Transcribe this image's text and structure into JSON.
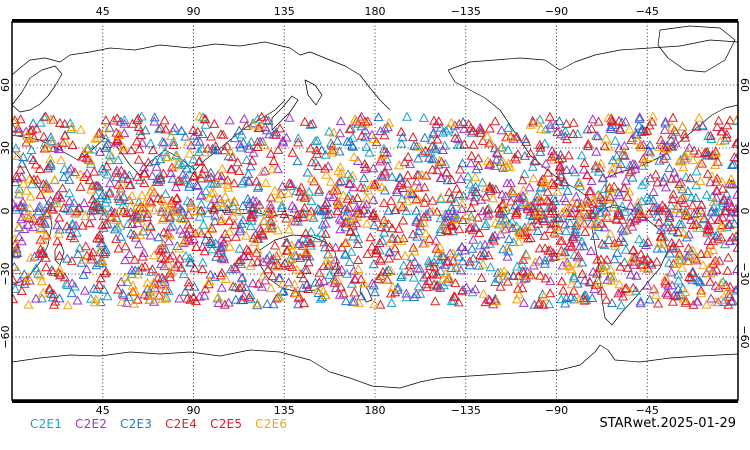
{
  "map": {
    "projection": "equirectangular",
    "lon_range": [
      0,
      360
    ],
    "lat_range": [
      -90,
      90
    ],
    "grid_lons": [
      45,
      90,
      135,
      180,
      225,
      270,
      315
    ],
    "grid_lats": [
      60,
      30,
      0,
      -30,
      -60
    ],
    "top_lon_labels": [
      "45",
      "90",
      "135",
      "180",
      "−135",
      "−90",
      "−45"
    ],
    "bottom_lon_labels": [
      "45",
      "90",
      "135",
      "180",
      "−135",
      "−90",
      "−45"
    ],
    "lat_labels": [
      "60",
      "30",
      "0",
      "−30",
      "−60"
    ],
    "grid_style": "dotted",
    "coastlines": true
  },
  "legend": {
    "items": [
      {
        "label": "C2E1",
        "color": "#1ba3c6"
      },
      {
        "label": "C2E2",
        "color": "#a033c8"
      },
      {
        "label": "C2E3",
        "color": "#1f78d0"
      },
      {
        "label": "C2E4",
        "color": "#d7262a"
      },
      {
        "label": "C2E5",
        "color": "#e8171c"
      },
      {
        "label": "C2E6",
        "color": "#f5a50a"
      }
    ]
  },
  "product_label": "STARwet.2025-01-29",
  "observations": {
    "marker": "open-triangle",
    "lat_extent": [
      -45,
      45
    ],
    "density": "very high, concentrated between 30S and 30N"
  }
}
